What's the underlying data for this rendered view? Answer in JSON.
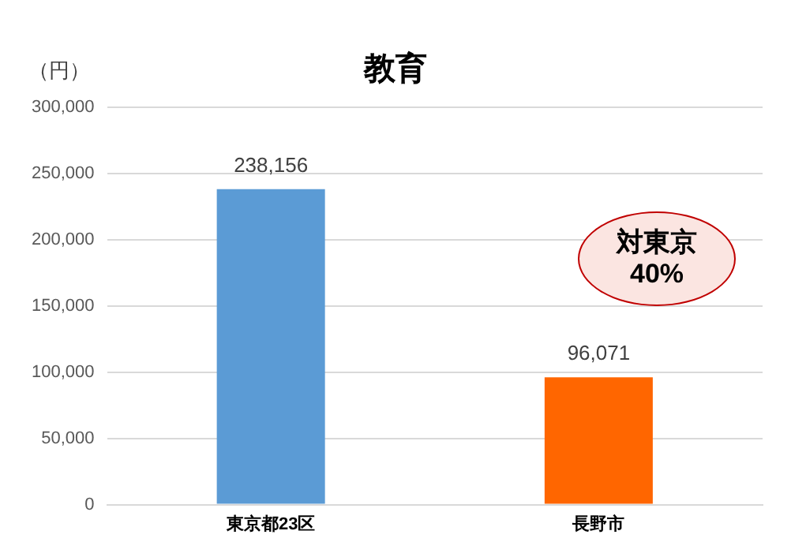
{
  "chart_data": {
    "type": "bar",
    "title": "教育",
    "ylabel": "（円）",
    "categories": [
      "東京都23区",
      "長野市"
    ],
    "values": [
      238156,
      96071
    ],
    "colors": [
      "#5b9bd5",
      "#ff6600"
    ],
    "value_labels": [
      "238,156",
      "96,071"
    ],
    "ylim": [
      0,
      300000
    ],
    "yticks": [
      0,
      {
        "value": 50000,
        "label": "50,000"
      },
      {
        "value": 100000,
        "label": "100,000"
      },
      {
        "value": 150000,
        "label": "150,000"
      },
      {
        "value": 200000,
        "label": "200,000"
      },
      {
        "value": 250000,
        "label": "250,000"
      },
      {
        "value": 300000,
        "label": "300,000"
      }
    ],
    "grid": "y",
    "legend": false,
    "annotations": [
      "対東京\n40%"
    ]
  }
}
